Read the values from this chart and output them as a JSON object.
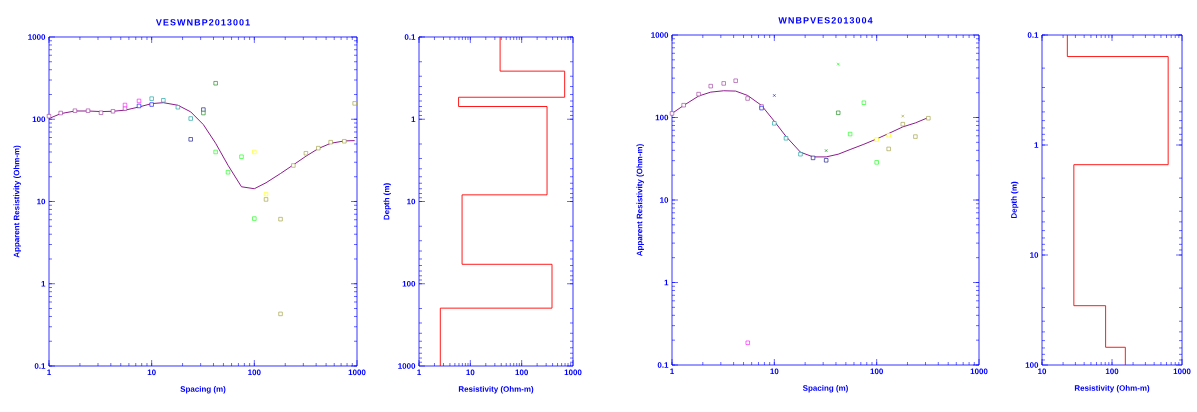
{
  "chart_data": [
    {
      "type": "scatter",
      "title": "VESWNBP2013001",
      "xlabel": "Spacing (m)",
      "ylabel": "Apparent Resistivity (Ohm-m)",
      "log": "xy",
      "marker": "square",
      "xlim": [
        1,
        1000
      ],
      "ylim": [
        0.1,
        1000
      ],
      "xticks": [
        1,
        10,
        100,
        1000
      ],
      "yticks": [
        0.1,
        1,
        10,
        100,
        1000
      ],
      "series": [
        {
          "color": "#993399",
          "x": [
            1,
            1.3,
            1.79,
            2.4,
            3.21,
            4.2,
            5.5
          ],
          "values": [
            109,
            119,
            127,
            127,
            120,
            125,
            135
          ]
        },
        {
          "color": "#ff00ff",
          "x": [
            5.5,
            7.53
          ],
          "values": [
            149,
            167
          ]
        },
        {
          "color": "#0000ff",
          "x": [
            7.53,
            10
          ],
          "values": [
            145,
            151
          ]
        },
        {
          "color": "#009999",
          "x": [
            10,
            13,
            18,
            24
          ],
          "values": [
            178,
            170,
            140,
            102
          ]
        },
        {
          "color": "#000080",
          "x": [
            24,
            31.9
          ],
          "values": [
            57,
            131
          ]
        },
        {
          "color": "#008000",
          "x": [
            31.9,
            42
          ],
          "values": [
            119,
            274
          ]
        },
        {
          "color": "#00ff00",
          "x": [
            42,
            55.4,
            75,
            100
          ],
          "values": [
            40,
            22.7,
            35,
            6.2
          ]
        },
        {
          "color": "#ffff00",
          "x": [
            100,
            130
          ],
          "values": [
            40,
            12.3
          ]
        },
        {
          "color": "#999933",
          "x": [
            130,
            180,
            180,
            240,
            318,
            420,
            554,
            753,
            949
          ],
          "values": [
            10.6,
            6.1,
            0.43,
            27.4,
            38.6,
            44.5,
            52.6,
            54,
            156
          ]
        },
        {
          "type": "line",
          "marker": "none",
          "color": "#800080",
          "x": [
            1,
            1.3,
            1.79,
            2.4,
            3.21,
            4.2,
            5.5,
            7.53,
            10,
            13,
            18,
            24,
            31.9,
            42,
            55.4,
            75,
            100,
            130,
            180,
            240,
            318,
            420,
            554,
            753,
            949
          ],
          "values": [
            102,
            117,
            126,
            126,
            124,
            125,
            129,
            141,
            155,
            159,
            148,
            123,
            86,
            51,
            27.6,
            15.1,
            14.3,
            16.9,
            21.9,
            27.9,
            35.5,
            44,
            51,
            54.5,
            55
          ]
        }
      ]
    },
    {
      "type": "line",
      "xlabel": "Resistivity (Ohm-m)",
      "ylabel": "Depth (m)",
      "log": "xy",
      "marker": "none",
      "xlim": [
        1,
        1000
      ],
      "ylim": [
        1000,
        0.1
      ],
      "xticks": [
        1,
        10,
        100,
        1000
      ],
      "yticks": [
        0.1,
        1,
        10,
        100,
        1000
      ],
      "series": [
        {
          "color": "#ff0000",
          "x": [
            38,
            38,
            688,
            688,
            5.9,
            5.9,
            312,
            312,
            6.9,
            6.9,
            390,
            390,
            2.6,
            2.6
          ],
          "values": [
            0.1,
            0.26,
            0.26,
            0.54,
            0.54,
            0.7,
            0.7,
            8.3,
            8.3,
            58,
            58,
            198,
            198,
            1000
          ]
        }
      ]
    },
    {
      "type": "scatter",
      "title": "WNBPVES2013004",
      "xlabel": "Spacing (m)",
      "ylabel": "Apparent Resistivity (Ohm-m)",
      "log": "xy",
      "marker": "square",
      "xlim": [
        1,
        1000
      ],
      "ylim": [
        0.1,
        1000
      ],
      "xticks": [
        1,
        10,
        100,
        1000
      ],
      "yticks": [
        0.1,
        1,
        10,
        100,
        1000
      ],
      "series": [
        {
          "color": "#993399",
          "x": [
            1,
            1.3,
            1.82,
            2.39,
            3.2,
            4.19,
            5.48,
            7.5
          ],
          "values": [
            112,
            141,
            192,
            240,
            259,
            279,
            170,
            136
          ]
        },
        {
          "color": "#ff00ff",
          "x": [
            5.5
          ],
          "values": [
            0.186
          ]
        },
        {
          "color": "#0000ff",
          "x": [
            7.5
          ],
          "values": [
            130
          ]
        },
        {
          "color": "#0000ff",
          "marker": "cross",
          "x": [
            10
          ],
          "values": [
            185
          ]
        },
        {
          "color": "#009999",
          "x": [
            10,
            13,
            18
          ],
          "values": [
            85,
            56,
            35.9
          ]
        },
        {
          "color": "#000080",
          "x": [
            23.9,
            32.1
          ],
          "values": [
            32.4,
            30.3
          ]
        },
        {
          "color": "#008000",
          "marker": "cross",
          "x": [
            32.1
          ],
          "values": [
            39.7
          ]
        },
        {
          "color": "#008000",
          "x": [
            42.1
          ],
          "values": [
            114
          ]
        },
        {
          "color": "#00ff00",
          "marker": "cross",
          "x": [
            42.1
          ],
          "values": [
            444
          ]
        },
        {
          "color": "#00ff00",
          "x": [
            55,
            75,
            100
          ],
          "values": [
            63,
            151,
            28.6
          ]
        },
        {
          "color": "#ffff00",
          "x": [
            100,
            131
          ],
          "values": [
            54,
            61
          ]
        },
        {
          "color": "#999933",
          "x": [
            131,
            180,
            239,
            320
          ],
          "values": [
            41.6,
            83,
            58.7,
            98
          ]
        },
        {
          "color": "#999933",
          "marker": "cross",
          "x": [
            180
          ],
          "values": [
            104
          ]
        },
        {
          "type": "line",
          "marker": "none",
          "color": "#800080",
          "x": [
            1,
            1.3,
            1.82,
            2.39,
            3.2,
            4.19,
            5.48,
            7.5,
            10,
            13,
            18,
            23.9,
            32.1,
            42.1,
            55,
            75,
            100,
            131,
            180,
            239,
            320
          ],
          "values": [
            112,
            140,
            182,
            203,
            211,
            209,
            185,
            140,
            90,
            59,
            38,
            33.3,
            33.3,
            35.9,
            40.9,
            47.4,
            55,
            64,
            77,
            86,
            100
          ]
        }
      ]
    },
    {
      "type": "line",
      "xlabel": "Resistivity (Ohm-m)",
      "ylabel": "Depth (m)",
      "log": "xy",
      "marker": "none",
      "xlim": [
        10,
        1000
      ],
      "ylim": [
        100,
        0.1
      ],
      "xticks": [
        10,
        100,
        1000
      ],
      "yticks": [
        0.1,
        1,
        10,
        100
      ],
      "series": [
        {
          "color": "#ff0000",
          "x": [
            23,
            23,
            634,
            634,
            28.5,
            28.5,
            81,
            81,
            155,
            155
          ],
          "values": [
            0.1,
            0.157,
            0.157,
            1.51,
            1.51,
            28.9,
            28.9,
            69,
            69,
            100
          ]
        }
      ]
    }
  ]
}
